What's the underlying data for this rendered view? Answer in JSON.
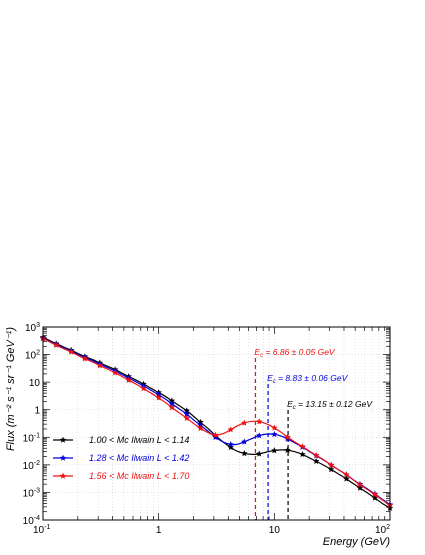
{
  "chart_data": {
    "type": "line",
    "xscale": "log",
    "yscale": "log",
    "xlim": [
      0.1,
      100
    ],
    "ylim": [
      0.0001,
      1000
    ],
    "xlabel": "Energy (GeV)",
    "ylabel": "Flux (m⁻² s⁻¹ sr⁻¹ GeV⁻¹)",
    "grid": true,
    "legend_position": "bottom-left",
    "x_ticks": [
      {
        "value": 0.1,
        "base": "10",
        "exp": "-1"
      },
      {
        "value": 1,
        "base": "1",
        "exp": ""
      },
      {
        "value": 10,
        "base": "10",
        "exp": ""
      },
      {
        "value": 100,
        "base": "10",
        "exp": "2"
      }
    ],
    "y_ticks": [
      {
        "value": 0.0001,
        "base": "10",
        "exp": "-4"
      },
      {
        "value": 0.001,
        "base": "10",
        "exp": "-3"
      },
      {
        "value": 0.01,
        "base": "10",
        "exp": "-2"
      },
      {
        "value": 0.1,
        "base": "10",
        "exp": "-1"
      },
      {
        "value": 1,
        "base": "1",
        "exp": ""
      },
      {
        "value": 10,
        "base": "10",
        "exp": ""
      },
      {
        "value": 100,
        "base": "10",
        "exp": "2"
      },
      {
        "value": 1000,
        "base": "10",
        "exp": "3"
      }
    ],
    "series": [
      {
        "name": "1.00 < Mc Ilwain L < 1.14",
        "color": "#000000",
        "cutoff_label": "Ec = 13.15 ± 0.12 GeV",
        "cutoff_energy": 13.15,
        "x": [
          0.1,
          0.115,
          0.13,
          0.15,
          0.175,
          0.2,
          0.23,
          0.27,
          0.31,
          0.36,
          0.42,
          0.48,
          0.55,
          0.64,
          0.74,
          0.85,
          1.0,
          1.15,
          1.3,
          1.5,
          1.75,
          2.0,
          2.3,
          2.7,
          3.1,
          3.6,
          4.2,
          4.8,
          5.5,
          6.4,
          7.4,
          8.5,
          10,
          11.5,
          13,
          15,
          17.5,
          20,
          23,
          27,
          31,
          36,
          42,
          48,
          55,
          64,
          74,
          85,
          100
        ],
        "y": [
          420,
          320,
          250,
          190,
          145,
          110,
          85,
          65,
          50,
          38,
          28.5,
          21.5,
          16,
          11.8,
          8.5,
          6.1,
          4.2,
          3.0,
          2.1,
          1.42,
          0.92,
          0.58,
          0.35,
          0.2,
          0.115,
          0.068,
          0.043,
          0.031,
          0.026,
          0.024,
          0.025,
          0.029,
          0.033,
          0.035,
          0.034,
          0.03,
          0.024,
          0.018,
          0.0135,
          0.0095,
          0.0068,
          0.0046,
          0.0031,
          0.0021,
          0.00145,
          0.00095,
          0.00063,
          0.00041,
          0.00027
        ]
      },
      {
        "name": "1.28 < Mc Ilwain L < 1.42",
        "color": "#0000dd",
        "cutoff_label": "Ec = 8.83 ± 0.06 GeV",
        "cutoff_energy": 8.83,
        "x": [
          0.1,
          0.115,
          0.13,
          0.15,
          0.175,
          0.2,
          0.23,
          0.27,
          0.31,
          0.36,
          0.42,
          0.48,
          0.55,
          0.64,
          0.74,
          0.85,
          1.0,
          1.15,
          1.3,
          1.5,
          1.75,
          2.0,
          2.3,
          2.7,
          3.1,
          3.6,
          4.2,
          4.8,
          5.5,
          6.4,
          7.4,
          8.5,
          10,
          11.5,
          13,
          15,
          17.5,
          20,
          23,
          27,
          31,
          36,
          42,
          48,
          55,
          64,
          74,
          85,
          100
        ],
        "y": [
          400,
          300,
          235,
          178,
          135,
          102,
          78,
          59,
          45,
          34,
          25.5,
          19,
          14,
          10.2,
          7.3,
          5.2,
          3.5,
          2.4,
          1.65,
          1.08,
          0.69,
          0.43,
          0.27,
          0.16,
          0.1,
          0.068,
          0.055,
          0.056,
          0.068,
          0.09,
          0.115,
          0.13,
          0.128,
          0.11,
          0.088,
          0.063,
          0.044,
          0.031,
          0.0215,
          0.0145,
          0.0098,
          0.0066,
          0.0044,
          0.0029,
          0.002,
          0.00133,
          0.00088,
          0.00058,
          0.00036
        ]
      },
      {
        "name": "1.56 < Mc Ilwain L < 1.70",
        "color": "#ee1111",
        "cutoff_label": "Ec = 6.86 ± 0.05 GeV",
        "cutoff_energy": 6.86,
        "x": [
          0.1,
          0.115,
          0.13,
          0.15,
          0.175,
          0.2,
          0.23,
          0.27,
          0.31,
          0.36,
          0.42,
          0.48,
          0.55,
          0.64,
          0.74,
          0.85,
          1.0,
          1.15,
          1.3,
          1.5,
          1.75,
          2.0,
          2.3,
          2.7,
          3.1,
          3.6,
          4.2,
          4.8,
          5.5,
          6.4,
          7.4,
          8.5,
          10,
          11.5,
          13,
          15,
          17.5,
          20,
          23,
          27,
          31,
          36,
          42,
          48,
          55,
          64,
          74,
          85,
          100
        ],
        "y": [
          380,
          285,
          220,
          165,
          125,
          94,
          71,
          53,
          40,
          30,
          22,
          16.3,
          11.8,
          8.4,
          5.9,
          4.1,
          2.7,
          1.8,
          1.2,
          0.78,
          0.49,
          0.32,
          0.21,
          0.145,
          0.12,
          0.135,
          0.19,
          0.26,
          0.33,
          0.38,
          0.37,
          0.31,
          0.22,
          0.15,
          0.102,
          0.068,
          0.046,
          0.032,
          0.0222,
          0.0148,
          0.0099,
          0.0066,
          0.0044,
          0.0029,
          0.0019,
          0.00127,
          0.00084,
          0.00055,
          0.00034
        ]
      }
    ]
  }
}
